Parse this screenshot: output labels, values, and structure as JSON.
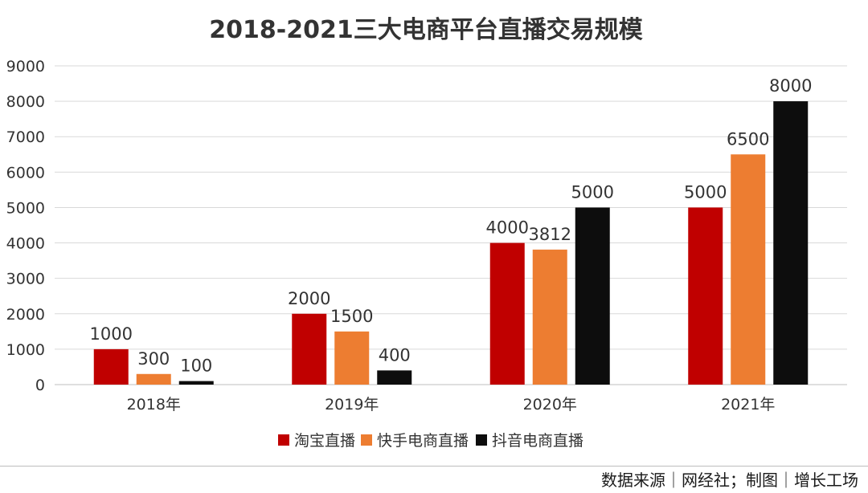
{
  "chart_data": {
    "type": "bar",
    "title": "2018-2021三大电商平台直播交易规模",
    "categories": [
      "2018年",
      "2019年",
      "2020年",
      "2021年"
    ],
    "series": [
      {
        "name": "淘宝直播",
        "values": [
          1000,
          2000,
          4000,
          5000
        ],
        "color": "#c00000"
      },
      {
        "name": "快手电商直播",
        "values": [
          300,
          1500,
          3812,
          6500
        ],
        "color": "#ed7d31"
      },
      {
        "name": "抖音电商直播",
        "values": [
          100,
          400,
          5000,
          8000
        ],
        "color": "#0d0d0d"
      }
    ],
    "data_labels": [
      [
        "1000",
        "2000",
        "4000",
        "5000"
      ],
      [
        "300",
        "1500",
        "3812",
        "6500"
      ],
      [
        "100",
        "400",
        "5000",
        "8000"
      ]
    ],
    "ylim": [
      0,
      9000
    ],
    "yticks": [
      "0",
      "1000",
      "2000",
      "3000",
      "4000",
      "5000",
      "6000",
      "7000",
      "8000",
      "9000"
    ],
    "grid": true,
    "legend_position": "bottom"
  },
  "footer": {
    "source": "数据来源｜网经社；制图｜增长工场"
  }
}
